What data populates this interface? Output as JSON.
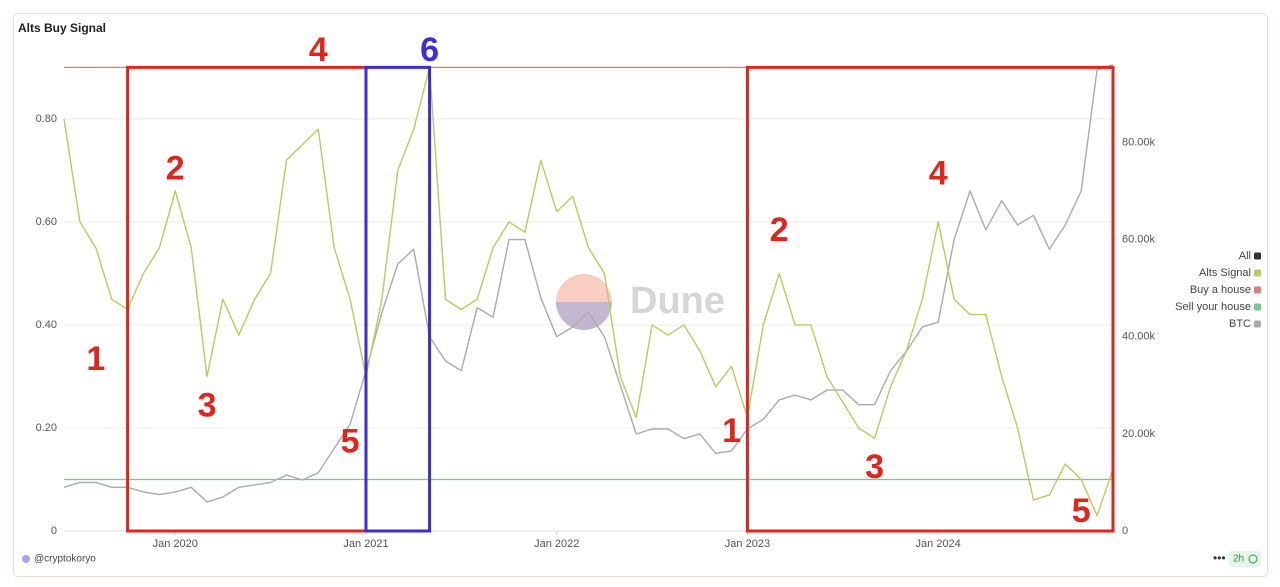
{
  "chart_data": {
    "type": "line",
    "title": "Alts Buy Signal",
    "x": [
      "2019-06",
      "2019-07",
      "2019-08",
      "2019-09",
      "2019-10",
      "2019-11",
      "2019-12",
      "2020-01",
      "2020-02",
      "2020-03",
      "2020-04",
      "2020-05",
      "2020-06",
      "2020-07",
      "2020-08",
      "2020-09",
      "2020-10",
      "2020-11",
      "2020-12",
      "2021-01",
      "2021-02",
      "2021-03",
      "2021-04",
      "2021-05",
      "2021-06",
      "2021-07",
      "2021-08",
      "2021-09",
      "2021-10",
      "2021-11",
      "2021-12",
      "2022-01",
      "2022-02",
      "2022-03",
      "2022-04",
      "2022-05",
      "2022-06",
      "2022-07",
      "2022-08",
      "2022-09",
      "2022-10",
      "2022-11",
      "2022-12",
      "2023-01",
      "2023-02",
      "2023-03",
      "2023-04",
      "2023-05",
      "2023-06",
      "2023-07",
      "2023-08",
      "2023-09",
      "2023-10",
      "2023-11",
      "2023-12",
      "2024-01",
      "2024-02",
      "2024-03",
      "2024-04",
      "2024-05",
      "2024-06",
      "2024-07",
      "2024-08",
      "2024-09",
      "2024-10",
      "2024-11",
      "2024-12"
    ],
    "series": [
      {
        "name": "Alts Signal",
        "color": "#bccb5c",
        "values": [
          0.8,
          0.6,
          0.55,
          0.45,
          0.43,
          0.5,
          0.55,
          0.66,
          0.55,
          0.3,
          0.45,
          0.38,
          0.45,
          0.5,
          0.72,
          0.75,
          0.78,
          0.55,
          0.45,
          0.3,
          0.45,
          0.7,
          0.78,
          0.9,
          0.45,
          0.43,
          0.45,
          0.55,
          0.6,
          0.58,
          0.72,
          0.62,
          0.65,
          0.55,
          0.5,
          0.3,
          0.22,
          0.4,
          0.38,
          0.4,
          0.35,
          0.28,
          0.32,
          0.22,
          0.4,
          0.5,
          0.4,
          0.4,
          0.3,
          0.25,
          0.2,
          0.18,
          0.28,
          0.35,
          0.45,
          0.6,
          0.45,
          0.42,
          0.42,
          0.3,
          0.2,
          0.06,
          0.07,
          0.13,
          0.1,
          0.03,
          0.12
        ]
      },
      {
        "name": "BTC",
        "color": "#ababab",
        "axis": "y2",
        "values": [
          9000,
          10000,
          10000,
          9000,
          9000,
          8000,
          7500,
          8000,
          9000,
          6000,
          7000,
          9000,
          9500,
          10000,
          11500,
          10500,
          12000,
          17000,
          22000,
          33000,
          45000,
          55000,
          58000,
          40000,
          35000,
          33000,
          46000,
          44000,
          60000,
          60000,
          48000,
          40000,
          42000,
          45000,
          40000,
          30000,
          20000,
          21000,
          21000,
          19000,
          20000,
          16000,
          16500,
          21000,
          23000,
          27000,
          28000,
          27000,
          29000,
          29000,
          26000,
          26000,
          33000,
          37000,
          42000,
          43000,
          60000,
          70000,
          62000,
          68000,
          63000,
          65000,
          58000,
          63000,
          70000,
          95000,
          96000
        ]
      }
    ],
    "reference_lines": [
      {
        "name": "Buy a house",
        "color": "#e07b7b",
        "value": 0.9
      },
      {
        "name": "Sell your house",
        "color": "#7cc68a",
        "value": 0.1
      }
    ],
    "legend_all": {
      "name": "All",
      "color": "#333333"
    },
    "xlim": [
      "2019-06",
      "2024-12"
    ],
    "xticks": [
      {
        "value": "2020-01",
        "label": "Jan 2020"
      },
      {
        "value": "2021-01",
        "label": "Jan 2021"
      },
      {
        "value": "2022-01",
        "label": "Jan 2022"
      },
      {
        "value": "2023-01",
        "label": "Jan 2023"
      },
      {
        "value": "2024-01",
        "label": "Jan 2024"
      }
    ],
    "ylim": [
      0,
      0.924
    ],
    "yticks": [
      0,
      {
        "value": 0.2,
        "label": "0.20"
      },
      {
        "value": 0.4,
        "label": "0.40"
      },
      {
        "value": 0.6,
        "label": "0.60"
      },
      {
        "value": 0.8,
        "label": "0.80"
      }
    ],
    "y2lim": [
      0,
      98000
    ],
    "y2ticks": [
      0,
      {
        "value": 20000,
        "label": "20.00k"
      },
      {
        "value": 40000,
        "label": "40.00k"
      },
      {
        "value": 60000,
        "label": "60.00k"
      },
      {
        "value": 80000,
        "label": "80.00k"
      }
    ],
    "grid": true,
    "legend": "right",
    "annotation_boxes": [
      {
        "x": [
          "2019-10",
          "2021-01"
        ],
        "y": [
          0,
          0.9
        ],
        "color": "#e0261c"
      },
      {
        "x": [
          "2021-01",
          "2021-05"
        ],
        "y": [
          0,
          0.9
        ],
        "color": "#3a2fd6"
      },
      {
        "x": [
          "2023-01",
          "2024-12"
        ],
        "y": [
          0,
          0.9
        ],
        "color": "#e0261c"
      }
    ],
    "annotations": [
      {
        "text": "1",
        "x": "2019-08",
        "y": 0.33,
        "color": "#e0261c"
      },
      {
        "text": "2",
        "x": "2020-01",
        "y": 0.7,
        "color": "#e0261c"
      },
      {
        "text": "3",
        "x": "2020-03",
        "y": 0.24,
        "color": "#e0261c"
      },
      {
        "text": "4",
        "x": "2020-10",
        "y": 0.93,
        "color": "#e0261c"
      },
      {
        "text": "5",
        "x": "2020-12",
        "y": 0.17,
        "color": "#e0261c"
      },
      {
        "text": "6",
        "x": "2021-05",
        "y": 0.93,
        "color": "#3a2fd6"
      },
      {
        "text": "1",
        "x": "2022-12",
        "y": 0.19,
        "color": "#e0261c"
      },
      {
        "text": "2",
        "x": "2023-03",
        "y": 0.58,
        "color": "#e0261c"
      },
      {
        "text": "3",
        "x": "2023-09",
        "y": 0.12,
        "color": "#e0261c"
      },
      {
        "text": "4",
        "x": "2024-01",
        "y": 0.69,
        "color": "#e0261c"
      },
      {
        "text": "5",
        "x": "2024-10",
        "y": 0.035,
        "color": "#e0261c"
      }
    ],
    "watermark": "Dune",
    "footer_user": "@cryptokoryo",
    "footer_age": "2h"
  }
}
